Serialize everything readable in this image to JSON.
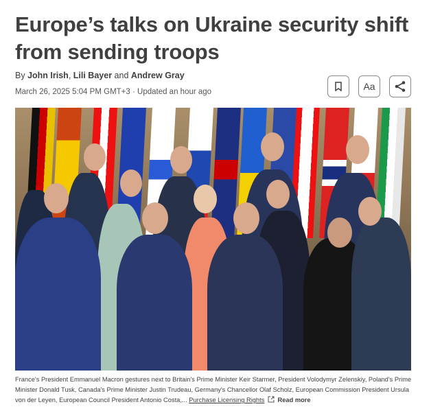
{
  "article": {
    "title": "Europe’s talks on Ukraine security shift from sending troops",
    "byline_prefix": "By",
    "authors": [
      "John Irish",
      "Lili Bayer",
      "Andrew Gray"
    ],
    "byline_sep1": ",",
    "byline_and": "and",
    "date": "March 26, 2025 5:04 PM GMT+3 · Updated an hour ago"
  },
  "toolbar": {
    "bookmark_icon": "bookmark-icon",
    "text_size_label": "Aa",
    "share_icon": "share-icon"
  },
  "photo": {
    "caption": "France's President Emmanuel Macron gestures next to Britain's Prime Minister Keir Starmer, President Volodymyr Zelenskiy, Poland's Prime Minister Donald Tusk, Canada's Prime Minister Justin Trudeau, Germany's Chancellor Olaf Scholz, European Commission President Ursula von der Leyen, European Council President Antonio Costa,...",
    "licensing_link": "Purchase Licensing Rights",
    "read_more": "Read more"
  }
}
